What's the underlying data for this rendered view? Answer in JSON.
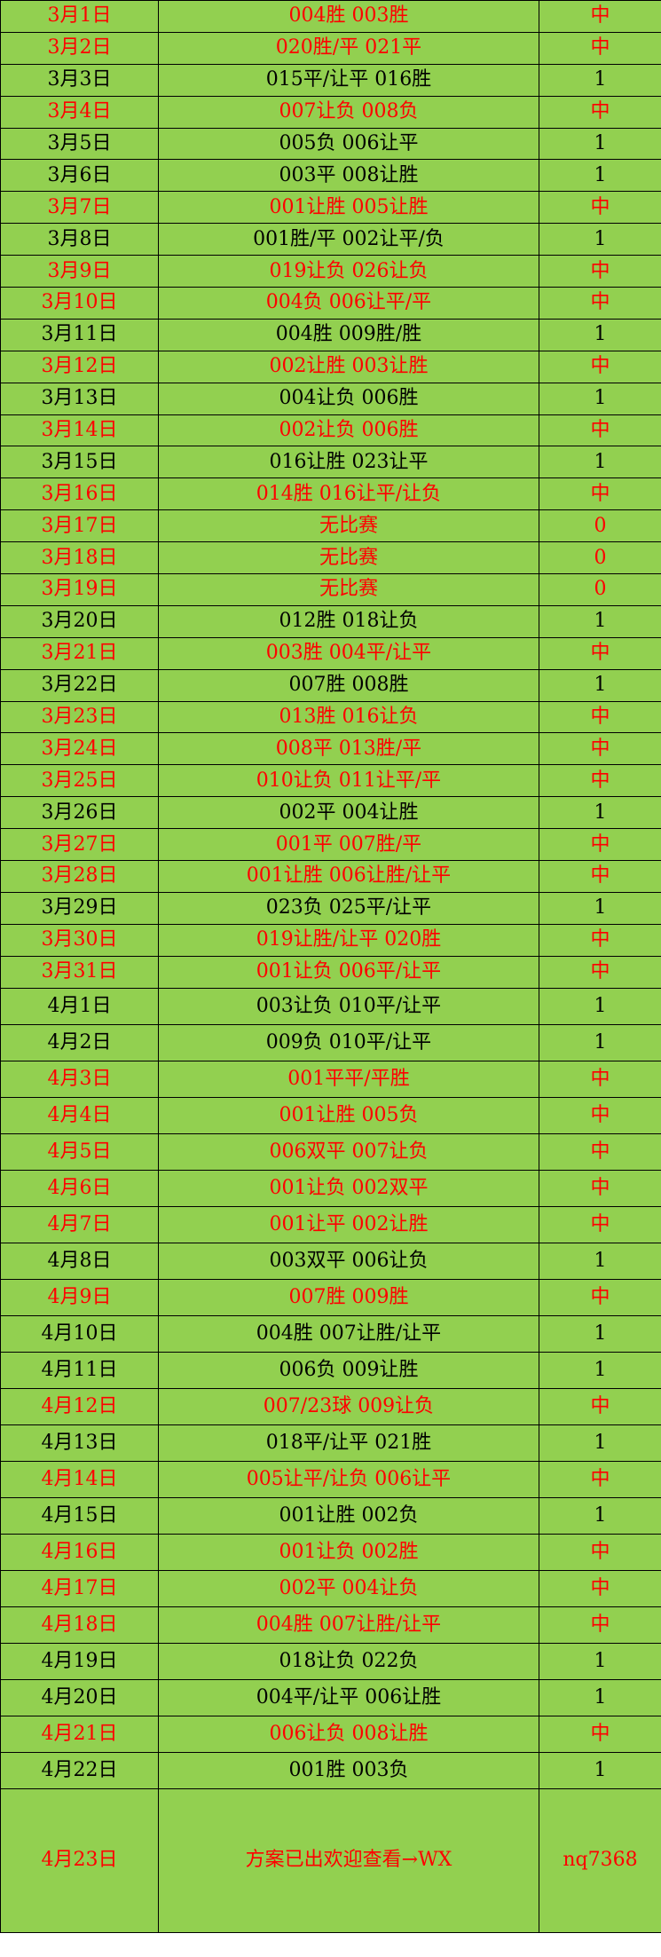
{
  "colors": {
    "background": "#92D050",
    "hit": "#FF0000",
    "normal": "#000000",
    "border": "#000000"
  },
  "rows": [
    {
      "date": "3月1日",
      "pick": "004胜 003胜",
      "result": "中",
      "highlight": true
    },
    {
      "date": "3月2日",
      "pick": "020胜/平 021平",
      "result": "中",
      "highlight": true
    },
    {
      "date": "3月3日",
      "pick": "015平/让平 016胜",
      "result": "1",
      "highlight": false
    },
    {
      "date": "3月4日",
      "pick": "007让负 008负",
      "result": "中",
      "highlight": true
    },
    {
      "date": "3月5日",
      "pick": "005负 006让平",
      "result": "1",
      "highlight": false
    },
    {
      "date": "3月6日",
      "pick": "003平 008让胜",
      "result": "1",
      "highlight": false
    },
    {
      "date": "3月7日",
      "pick": "001让胜 005让胜",
      "result": "中",
      "highlight": true
    },
    {
      "date": "3月8日",
      "pick": "001胜/平 002让平/负",
      "result": "1",
      "highlight": false
    },
    {
      "date": "3月9日",
      "pick": "019让负 026让负",
      "result": "中",
      "highlight": true
    },
    {
      "date": "3月10日",
      "pick": "004负 006让平/平",
      "result": "中",
      "highlight": true
    },
    {
      "date": "3月11日",
      "pick": "004胜 009胜/胜",
      "result": "1",
      "highlight": false
    },
    {
      "date": "3月12日",
      "pick": "002让胜 003让胜",
      "result": "中",
      "highlight": true
    },
    {
      "date": "3月13日",
      "pick": "004让负 006胜",
      "result": "1",
      "highlight": false
    },
    {
      "date": "3月14日",
      "pick": "002让负 006胜",
      "result": "中",
      "highlight": true
    },
    {
      "date": "3月15日",
      "pick": "016让胜 023让平",
      "result": "1",
      "highlight": false
    },
    {
      "date": "3月16日",
      "pick": "014胜 016让平/让负",
      "result": "中",
      "highlight": true
    },
    {
      "date": "3月17日",
      "pick": "无比赛",
      "result": "0",
      "highlight": true
    },
    {
      "date": "3月18日",
      "pick": "无比赛",
      "result": "0",
      "highlight": true
    },
    {
      "date": "3月19日",
      "pick": "无比赛",
      "result": "0",
      "highlight": true
    },
    {
      "date": "3月20日",
      "pick": "012胜 018让负",
      "result": "1",
      "highlight": false
    },
    {
      "date": "3月21日",
      "pick": "003胜 004平/让平",
      "result": "中",
      "highlight": true
    },
    {
      "date": "3月22日",
      "pick": "007胜 008胜",
      "result": "1",
      "highlight": false
    },
    {
      "date": "3月23日",
      "pick": "013胜 016让负",
      "result": "中",
      "highlight": true
    },
    {
      "date": "3月24日",
      "pick": "008平 013胜/平",
      "result": "中",
      "highlight": true
    },
    {
      "date": "3月25日",
      "pick": "010让负 011让平/平",
      "result": "中",
      "highlight": true
    },
    {
      "date": "3月26日",
      "pick": "002平 004让胜",
      "result": "1",
      "highlight": false
    },
    {
      "date": "3月27日",
      "pick": "001平 007胜/平",
      "result": "中",
      "highlight": true
    },
    {
      "date": "3月28日",
      "pick": "001让胜 006让胜/让平",
      "result": "中",
      "highlight": true
    },
    {
      "date": "3月29日",
      "pick": "023负 025平/让平",
      "result": "1",
      "highlight": false
    },
    {
      "date": "3月30日",
      "pick": "019让胜/让平 020胜",
      "result": "中",
      "highlight": true
    },
    {
      "date": "3月31日",
      "pick": "001让负 006平/让平",
      "result": "中",
      "highlight": true
    },
    {
      "date": "4月1日",
      "pick": "003让负 010平/让平",
      "result": "1",
      "highlight": false
    },
    {
      "date": "4月2日",
      "pick": "009负 010平/让平",
      "result": "1",
      "highlight": false
    },
    {
      "date": "4月3日",
      "pick": "001平平/平胜",
      "result": "中",
      "highlight": true
    },
    {
      "date": "4月4日",
      "pick": "001让胜 005负",
      "result": "中",
      "highlight": true
    },
    {
      "date": "4月5日",
      "pick": "006双平 007让负",
      "result": "中",
      "highlight": true
    },
    {
      "date": "4月6日",
      "pick": "001让负 002双平",
      "result": "中",
      "highlight": true
    },
    {
      "date": "4月7日",
      "pick": "001让平 002让胜",
      "result": "中",
      "highlight": true
    },
    {
      "date": "4月8日",
      "pick": "003双平 006让负",
      "result": "1",
      "highlight": false
    },
    {
      "date": "4月9日",
      "pick": "007胜 009胜",
      "result": "中",
      "highlight": true
    },
    {
      "date": "4月10日",
      "pick": "004胜 007让胜/让平",
      "result": "1",
      "highlight": false
    },
    {
      "date": "4月11日",
      "pick": "006负 009让胜",
      "result": "1",
      "highlight": false
    },
    {
      "date": "4月12日",
      "pick": "007/23球  009让负",
      "result": "中",
      "highlight": true
    },
    {
      "date": "4月13日",
      "pick": "018平/让平 021胜",
      "result": "1",
      "highlight": false
    },
    {
      "date": "4月14日",
      "pick": "005让平/让负 006让平",
      "result": "中",
      "highlight": true
    },
    {
      "date": "4月15日",
      "pick": "001让胜 002负",
      "result": "1",
      "highlight": false
    },
    {
      "date": "4月16日",
      "pick": "001让负 002胜",
      "result": "中",
      "highlight": true
    },
    {
      "date": "4月17日",
      "pick": "002平 004让负",
      "result": "中",
      "highlight": true
    },
    {
      "date": "4月18日",
      "pick": "004胜 007让胜/让平",
      "result": "中",
      "highlight": true
    },
    {
      "date": "4月19日",
      "pick": "018让负 022负",
      "result": "1",
      "highlight": false
    },
    {
      "date": "4月20日",
      "pick": "004平/让平 006让胜",
      "result": "1",
      "highlight": false
    },
    {
      "date": "4月21日",
      "pick": "006让负 008让胜",
      "result": "中",
      "highlight": true
    },
    {
      "date": "4月22日",
      "pick": "001胜 003负",
      "result": "1",
      "highlight": false
    },
    {
      "date": "4月23日",
      "pick": "方案已出欢迎查看→WX",
      "result": "nq7368",
      "highlight": true
    }
  ]
}
